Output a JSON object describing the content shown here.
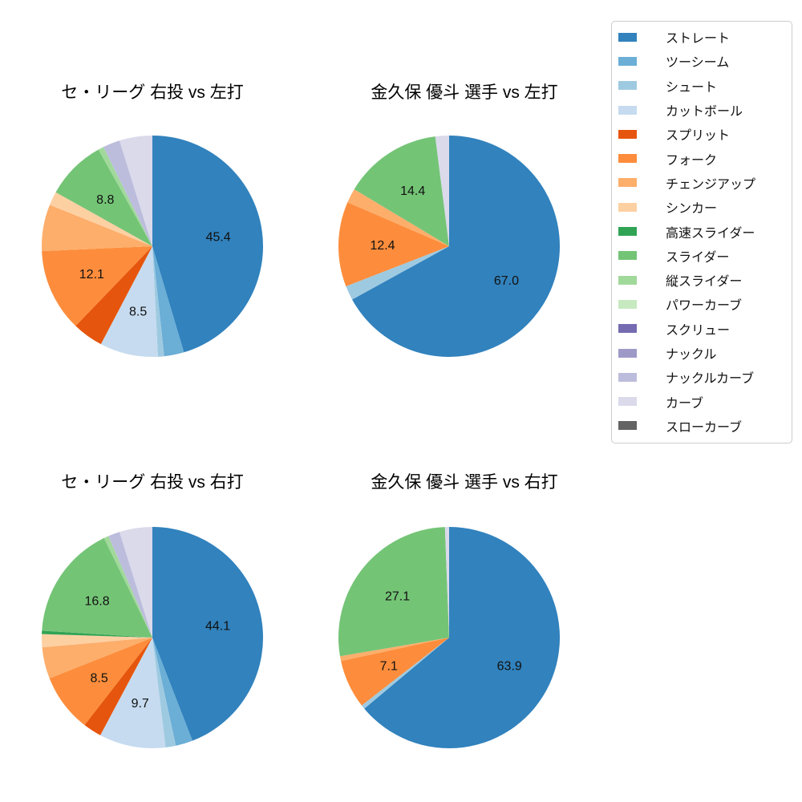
{
  "page": {
    "background": "#ffffff"
  },
  "legend": {
    "border_color": "#cccccc",
    "position": "upper-right",
    "items": [
      {
        "label": "ストレート",
        "color": "#3182bd"
      },
      {
        "label": "ツーシーム",
        "color": "#6baed6"
      },
      {
        "label": "シュート",
        "color": "#9ecae1"
      },
      {
        "label": "カットボール",
        "color": "#c6dbef"
      },
      {
        "label": "スプリット",
        "color": "#e6550d"
      },
      {
        "label": "フォーク",
        "color": "#fd8d3c"
      },
      {
        "label": "チェンジアップ",
        "color": "#fdae6b"
      },
      {
        "label": "シンカー",
        "color": "#fdd0a2"
      },
      {
        "label": "高速スライダー",
        "color": "#31a354"
      },
      {
        "label": "スライダー",
        "color": "#74c476"
      },
      {
        "label": "縦スライダー",
        "color": "#a1d99b"
      },
      {
        "label": "パワーカーブ",
        "color": "#c7e9c0"
      },
      {
        "label": "スクリュー",
        "color": "#756bb1"
      },
      {
        "label": "ナックル",
        "color": "#9e9ac8"
      },
      {
        "label": "ナックルカーブ",
        "color": "#bcbddc"
      },
      {
        "label": "カーブ",
        "color": "#dadaeb"
      },
      {
        "label": "スローカーブ",
        "color": "#636363"
      }
    ]
  },
  "chart_data": [
    {
      "type": "pie",
      "title": "セ・リーグ 右投 vs 左打",
      "start_angle": "top",
      "direction": "clockwise",
      "value_unit": "percent",
      "slices": [
        {
          "label": "ストレート",
          "value": 45.4,
          "color": "#3182bd",
          "show_value": true
        },
        {
          "label": "ツーシーム",
          "value": 2.9,
          "color": "#6baed6",
          "show_value": false
        },
        {
          "label": "シュート",
          "value": 0.9,
          "color": "#9ecae1",
          "show_value": false
        },
        {
          "label": "カットボール",
          "value": 8.5,
          "color": "#c6dbef",
          "show_value": true
        },
        {
          "label": "スプリット",
          "value": 4.5,
          "color": "#e6550d",
          "show_value": false
        },
        {
          "label": "フォーク",
          "value": 12.1,
          "color": "#fd8d3c",
          "show_value": true
        },
        {
          "label": "チェンジアップ",
          "value": 6.8,
          "color": "#fdae6b",
          "show_value": false
        },
        {
          "label": "シンカー",
          "value": 2.0,
          "color": "#fdd0a2",
          "show_value": false
        },
        {
          "label": "スライダー",
          "value": 8.8,
          "color": "#74c476",
          "show_value": true
        },
        {
          "label": "縦スライダー",
          "value": 0.8,
          "color": "#a1d99b",
          "show_value": false
        },
        {
          "label": "ナックルカーブ",
          "value": 2.5,
          "color": "#bcbddc",
          "show_value": false
        },
        {
          "label": "カーブ",
          "value": 4.8,
          "color": "#dadaeb",
          "show_value": false
        }
      ]
    },
    {
      "type": "pie",
      "title": "金久保 優斗 選手 vs 左打",
      "start_angle": "top",
      "direction": "clockwise",
      "value_unit": "percent",
      "slices": [
        {
          "label": "ストレート",
          "value": 67.0,
          "color": "#3182bd",
          "show_value": true
        },
        {
          "label": "シュート",
          "value": 2.1,
          "color": "#9ecae1",
          "show_value": false
        },
        {
          "label": "フォーク",
          "value": 12.4,
          "color": "#fd8d3c",
          "show_value": true
        },
        {
          "label": "チェンジアップ",
          "value": 2.1,
          "color": "#fdae6b",
          "show_value": false
        },
        {
          "label": "スライダー",
          "value": 14.4,
          "color": "#74c476",
          "show_value": true
        },
        {
          "label": "カーブ",
          "value": 2.0,
          "color": "#dadaeb",
          "show_value": false
        }
      ]
    },
    {
      "type": "pie",
      "title": "セ・リーグ 右投 vs 右打",
      "start_angle": "top",
      "direction": "clockwise",
      "value_unit": "percent",
      "slices": [
        {
          "label": "ストレート",
          "value": 44.1,
          "color": "#3182bd",
          "show_value": true
        },
        {
          "label": "ツーシーム",
          "value": 2.5,
          "color": "#6baed6",
          "show_value": false
        },
        {
          "label": "シュート",
          "value": 1.5,
          "color": "#9ecae1",
          "show_value": false
        },
        {
          "label": "カットボール",
          "value": 9.7,
          "color": "#c6dbef",
          "show_value": true
        },
        {
          "label": "スプリット",
          "value": 2.7,
          "color": "#e6550d",
          "show_value": false
        },
        {
          "label": "フォーク",
          "value": 8.5,
          "color": "#fd8d3c",
          "show_value": true
        },
        {
          "label": "チェンジアップ",
          "value": 4.6,
          "color": "#fdae6b",
          "show_value": false
        },
        {
          "label": "シンカー",
          "value": 1.9,
          "color": "#fdd0a2",
          "show_value": false
        },
        {
          "label": "高速スライダー",
          "value": 0.5,
          "color": "#31a354",
          "show_value": false
        },
        {
          "label": "スライダー",
          "value": 16.8,
          "color": "#74c476",
          "show_value": true
        },
        {
          "label": "縦スライダー",
          "value": 0.7,
          "color": "#a1d99b",
          "show_value": false
        },
        {
          "label": "ナックルカーブ",
          "value": 1.7,
          "color": "#bcbddc",
          "show_value": false
        },
        {
          "label": "カーブ",
          "value": 4.8,
          "color": "#dadaeb",
          "show_value": false
        }
      ]
    },
    {
      "type": "pie",
      "title": "金久保 優斗 選手 vs 右打",
      "start_angle": "top",
      "direction": "clockwise",
      "value_unit": "percent",
      "slices": [
        {
          "label": "ストレート",
          "value": 63.9,
          "color": "#3182bd",
          "show_value": true
        },
        {
          "label": "シュート",
          "value": 0.6,
          "color": "#9ecae1",
          "show_value": false
        },
        {
          "label": "フォーク",
          "value": 7.1,
          "color": "#fd8d3c",
          "show_value": true
        },
        {
          "label": "チェンジアップ",
          "value": 0.7,
          "color": "#fdae6b",
          "show_value": false
        },
        {
          "label": "スライダー",
          "value": 27.1,
          "color": "#74c476",
          "show_value": true
        },
        {
          "label": "カーブ",
          "value": 0.6,
          "color": "#dadaeb",
          "show_value": false
        }
      ]
    }
  ]
}
